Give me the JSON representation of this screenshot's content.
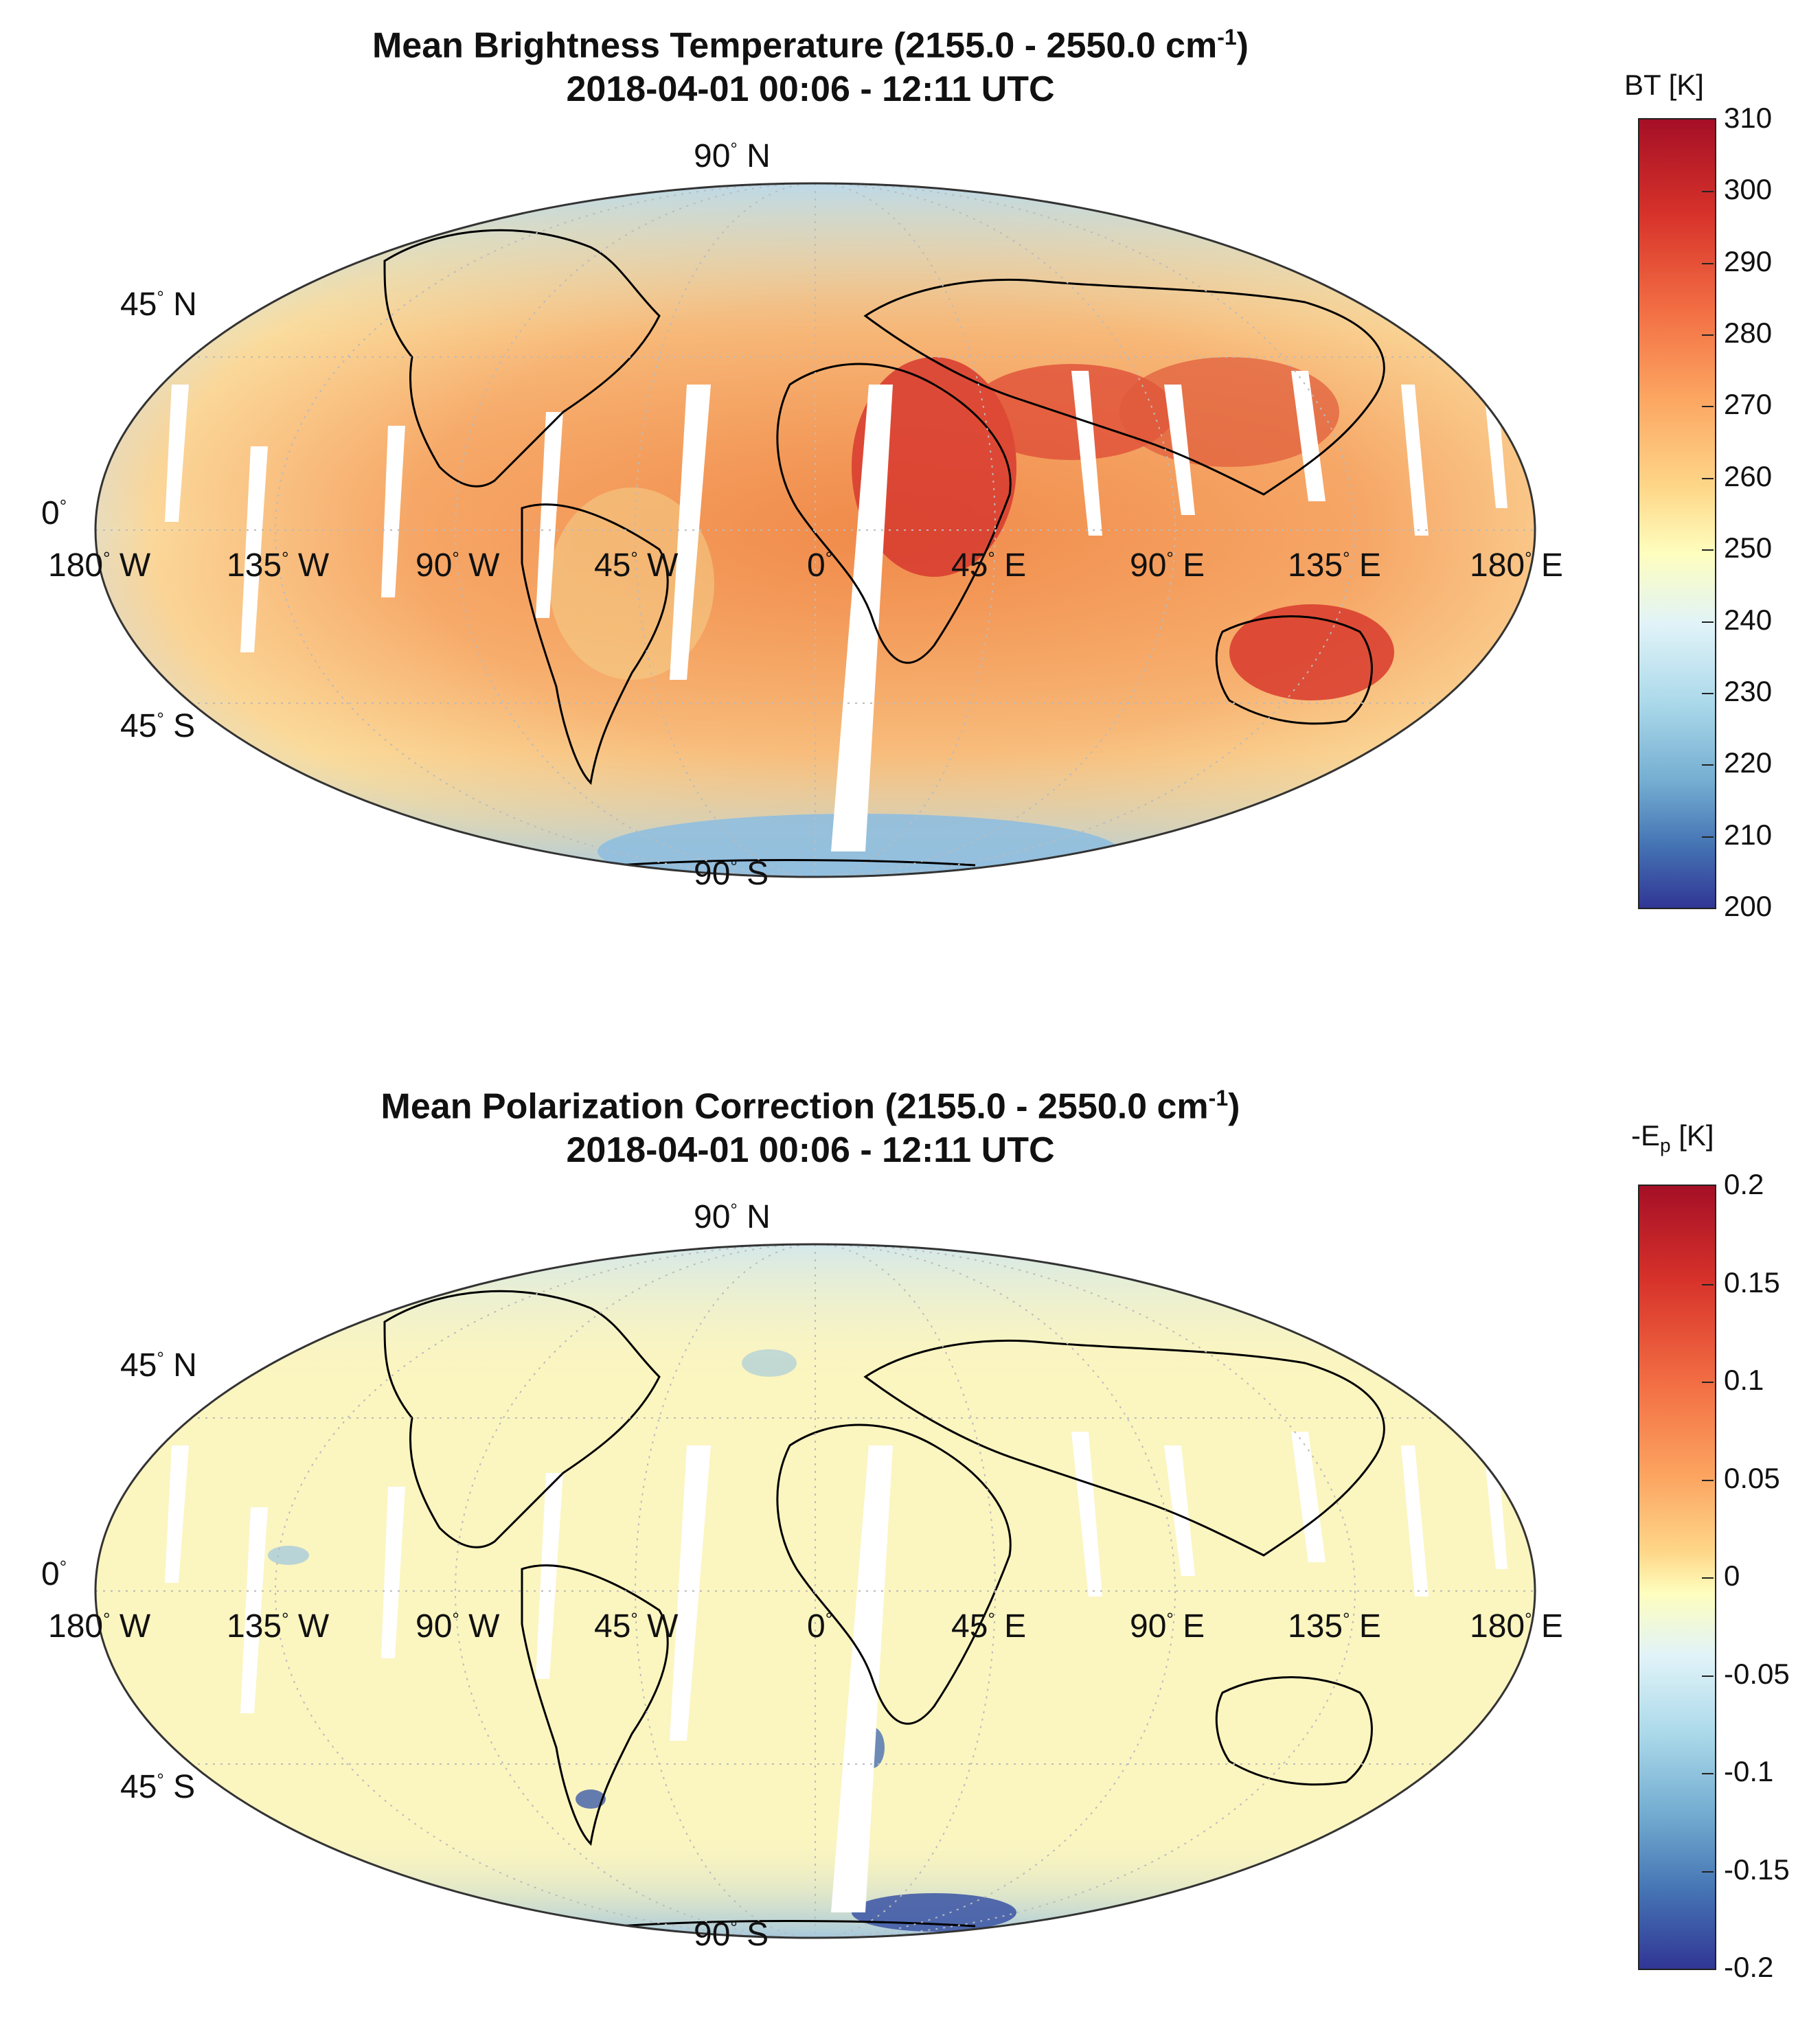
{
  "panels": [
    {
      "title_line1": "Mean Brightness Temperature (2155.0 - 2550.0 cm",
      "title_sup": "-1",
      "title_close": ")",
      "title_line2": "2018-04-01 00:06 - 12:11 UTC",
      "colorbar_label": "BT [K]",
      "colorbar_ticks": [
        "310",
        "300",
        "290",
        "280",
        "270",
        "260",
        "250",
        "240",
        "230",
        "220",
        "210",
        "200"
      ],
      "colorbar_range": [
        200,
        310
      ]
    },
    {
      "title_line1": "Mean Polarization Correction (2155.0 - 2550.0 cm",
      "title_sup": "-1",
      "title_close": ")",
      "title_line2": "2018-04-01 00:06 - 12:11 UTC",
      "colorbar_label_main": "-E",
      "colorbar_label_sub": "p",
      "colorbar_label_unit": " [K]",
      "colorbar_ticks": [
        "0.2",
        "0.15",
        "0.1",
        "0.05",
        "0",
        "-0.05",
        "-0.1",
        "-0.15",
        "-0.2"
      ],
      "colorbar_range": [
        -0.2,
        0.2
      ]
    }
  ],
  "map_labels": {
    "lat_90n": "90",
    "lat_90n_dir": "N",
    "lat_45n": "45",
    "lat_45n_dir": "N",
    "lat_0": "0",
    "lat_45s": "45",
    "lat_45s_dir": "S",
    "lat_90s": "90",
    "lat_90s_dir": "S",
    "lon_180w": "180",
    "lon_180w_dir": "W",
    "lon_135w": "135",
    "lon_135w_dir": "W",
    "lon_90w": "90",
    "lon_90w_dir": "W",
    "lon_45w": "45",
    "lon_45w_dir": "W",
    "lon_0": "0",
    "lon_45e": "45",
    "lon_45e_dir": "E",
    "lon_90e": "90",
    "lon_90e_dir": "E",
    "lon_135e": "135",
    "lon_135e_dir": "E",
    "lon_180e": "180",
    "lon_180e_dir": "E",
    "degree": "°"
  },
  "colors": {
    "bt_map_base": "#f4a35c",
    "pc_map_base": "#fbf5c0"
  }
}
